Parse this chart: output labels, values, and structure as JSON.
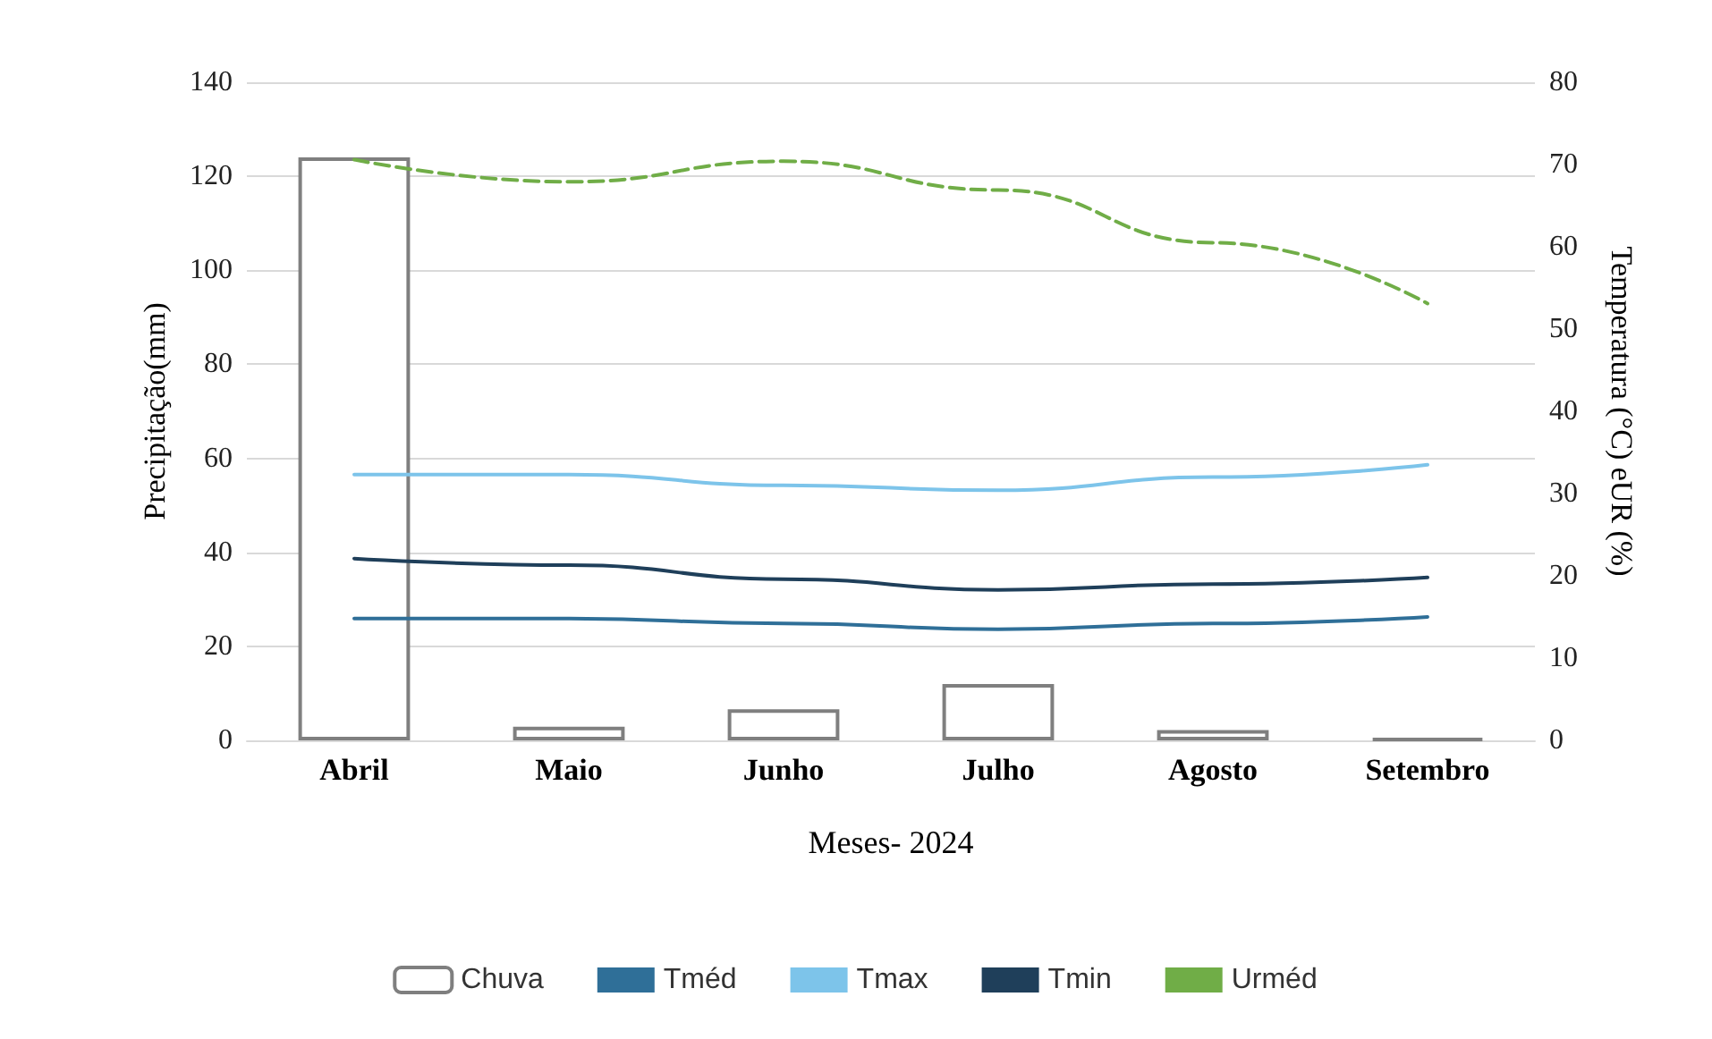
{
  "chart_data": {
    "type": "bar",
    "xlabel": "Meses- 2024",
    "ylabel": "Precipitação(mm)",
    "y2label": "Temperatura (°C) eUR (%)",
    "categories": [
      "Abril",
      "Maio",
      "Junho",
      "Julho",
      "Agosto",
      "Setembro"
    ],
    "ylim": [
      0,
      140
    ],
    "yticks": [
      0,
      20,
      40,
      60,
      80,
      100,
      120,
      140
    ],
    "y2lim": [
      0,
      80
    ],
    "y2ticks": [
      0,
      10,
      20,
      30,
      40,
      50,
      60,
      70,
      80
    ],
    "series": [
      {
        "name": "Chuva",
        "colors": [
          "#ffffff",
          "#ffffff",
          "#ffffff",
          "#ffffff",
          "#ffffff",
          "#7f7f7f"
        ],
        "values": [
          124,
          2.9,
          6.6,
          12,
          2.2,
          0.4
        ]
      },
      {
        "name": "Tméd",
        "type": "line",
        "axis": "y2",
        "color": "#2f6f98",
        "line_style": "solid",
        "values": [
          14.8,
          14.8,
          14.2,
          13.5,
          14.2,
          15
        ]
      },
      {
        "name": "Tmax",
        "type": "line",
        "axis": "y2",
        "color": "#7dc4ea",
        "line_style": "solid",
        "values": [
          32.3,
          32.3,
          31,
          30.4,
          32,
          33.5
        ]
      },
      {
        "name": "Tmin",
        "type": "line",
        "axis": "y2",
        "color": "#1f3f5a",
        "line_style": "solid",
        "values": [
          22.1,
          21.3,
          19.6,
          18.3,
          19,
          19.8
        ]
      },
      {
        "name": "Urméd",
        "type": "line",
        "axis": "y2",
        "color": "#70ad47",
        "line_style": "dashed",
        "values": [
          70.6,
          67.9,
          70.4,
          66.9,
          60.5,
          53.1
        ]
      }
    ],
    "grid": "y",
    "legend": "bottom",
    "marker": "none"
  }
}
